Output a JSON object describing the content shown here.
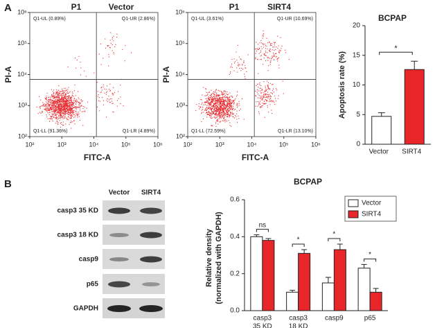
{
  "panel_labels": [
    "A",
    "B"
  ],
  "blot": {
    "columns": [
      "Vector",
      "SIRT4"
    ],
    "rows": [
      "casp3 35 KD",
      "casp3 18 KD",
      "casp9",
      "p65",
      "GAPDH"
    ]
  },
  "chart_data": [
    {
      "type": "flow",
      "title": "P1",
      "subtitle": "Vector",
      "x_label": "FITC-A",
      "y_label": "PI-A",
      "log": true,
      "color": "#e8262a",
      "xlim": [
        100,
        1000000
      ],
      "ylim": [
        100,
        1000000
      ],
      "xticks": [
        {
          "value": 100,
          "label": "10²"
        },
        {
          "value": 1000,
          "label": "10³"
        },
        {
          "value": 10000,
          "label": "10⁴"
        },
        {
          "value": 100000,
          "label": "10⁵"
        },
        {
          "value": 1000000,
          "label": "10⁶"
        }
      ],
      "yticks": [
        {
          "value": 100,
          "label": "10²"
        },
        {
          "value": 1000,
          "label": "10³"
        },
        {
          "value": 10000,
          "label": "10⁴"
        },
        {
          "value": 100000,
          "label": "10⁵"
        },
        {
          "value": 1000000,
          "label": "10⁶"
        }
      ],
      "gates": {
        "x": 12000,
        "y": 7000
      },
      "quadrants": [
        {
          "value": 0.89,
          "label": "Q1-UL (0.89%)"
        },
        {
          "value": 2.86,
          "label": "Q1-UR (2.86%)"
        },
        {
          "value": 91.36,
          "label": "Q1-LL (91.36%)"
        },
        {
          "value": 4.89,
          "label": "Q1-LR (4.89%)"
        }
      ]
    },
    {
      "type": "flow",
      "title": "P1",
      "subtitle": "SIRT4",
      "x_label": "FITC-A",
      "y_label": "PI-A",
      "log": true,
      "color": "#e8262a",
      "xlim": [
        100,
        1000000
      ],
      "ylim": [
        100,
        1000000
      ],
      "xticks": [
        {
          "value": 100,
          "label": "10²"
        },
        {
          "value": 1000,
          "label": "10³"
        },
        {
          "value": 10000,
          "label": "10⁴"
        },
        {
          "value": 100000,
          "label": "10⁵"
        },
        {
          "value": 1000000,
          "label": "10⁶"
        }
      ],
      "yticks": [
        {
          "value": 100,
          "label": "10²"
        },
        {
          "value": 1000,
          "label": "10³"
        },
        {
          "value": 10000,
          "label": "10⁴"
        },
        {
          "value": 100000,
          "label": "10⁵"
        },
        {
          "value": 1000000,
          "label": "10⁶"
        }
      ],
      "gates": {
        "x": 12000,
        "y": 7000
      },
      "quadrants": [
        {
          "value": 3.61,
          "label": "Q1-UL (3.61%)"
        },
        {
          "value": 10.69,
          "label": "Q1-UR (10.69%)"
        },
        {
          "value": 72.59,
          "label": "Q1-LL (72.59%)"
        },
        {
          "value": 13.1,
          "label": "Q1-LR (13.10%)"
        }
      ]
    },
    {
      "type": "bar",
      "title": "BCPAP",
      "y_label": "Apoptosis rate (%)",
      "categories": [
        "Vector",
        "SIRT4"
      ],
      "values": [
        4.7,
        12.6
      ],
      "errors": [
        0.6,
        1.4
      ],
      "colors": [
        "#ffffff",
        "#e8262a"
      ],
      "ylim": [
        0,
        20
      ],
      "yticks": [
        0,
        5,
        10,
        15,
        20
      ],
      "annotation": "*"
    },
    {
      "type": "grouped_bar",
      "title": "BCPAP",
      "y_label": [
        "Relative density",
        "(normalized with GAPDH)"
      ],
      "categories": [
        [
          "casp3",
          "35 KD"
        ],
        [
          "casp3",
          "18 KD"
        ],
        [
          "casp9"
        ],
        [
          "p65"
        ]
      ],
      "series": [
        {
          "name": "Vector",
          "color": "#ffffff",
          "values": [
            0.4,
            0.1,
            0.15,
            0.23
          ],
          "errors": [
            0.01,
            0.01,
            0.03,
            0.02
          ]
        },
        {
          "name": "SIRT4",
          "color": "#e8262a",
          "values": [
            0.38,
            0.31,
            0.33,
            0.1
          ],
          "errors": [
            0.01,
            0.02,
            0.03,
            0.02
          ]
        }
      ],
      "ylim": [
        0,
        0.6
      ],
      "yticks": [
        {
          "value": 0,
          "label": "0.0"
        },
        0.2,
        0.4,
        0.6
      ],
      "annotations": [
        "ns",
        "*",
        "*",
        "*"
      ],
      "legend": "upper right"
    }
  ]
}
